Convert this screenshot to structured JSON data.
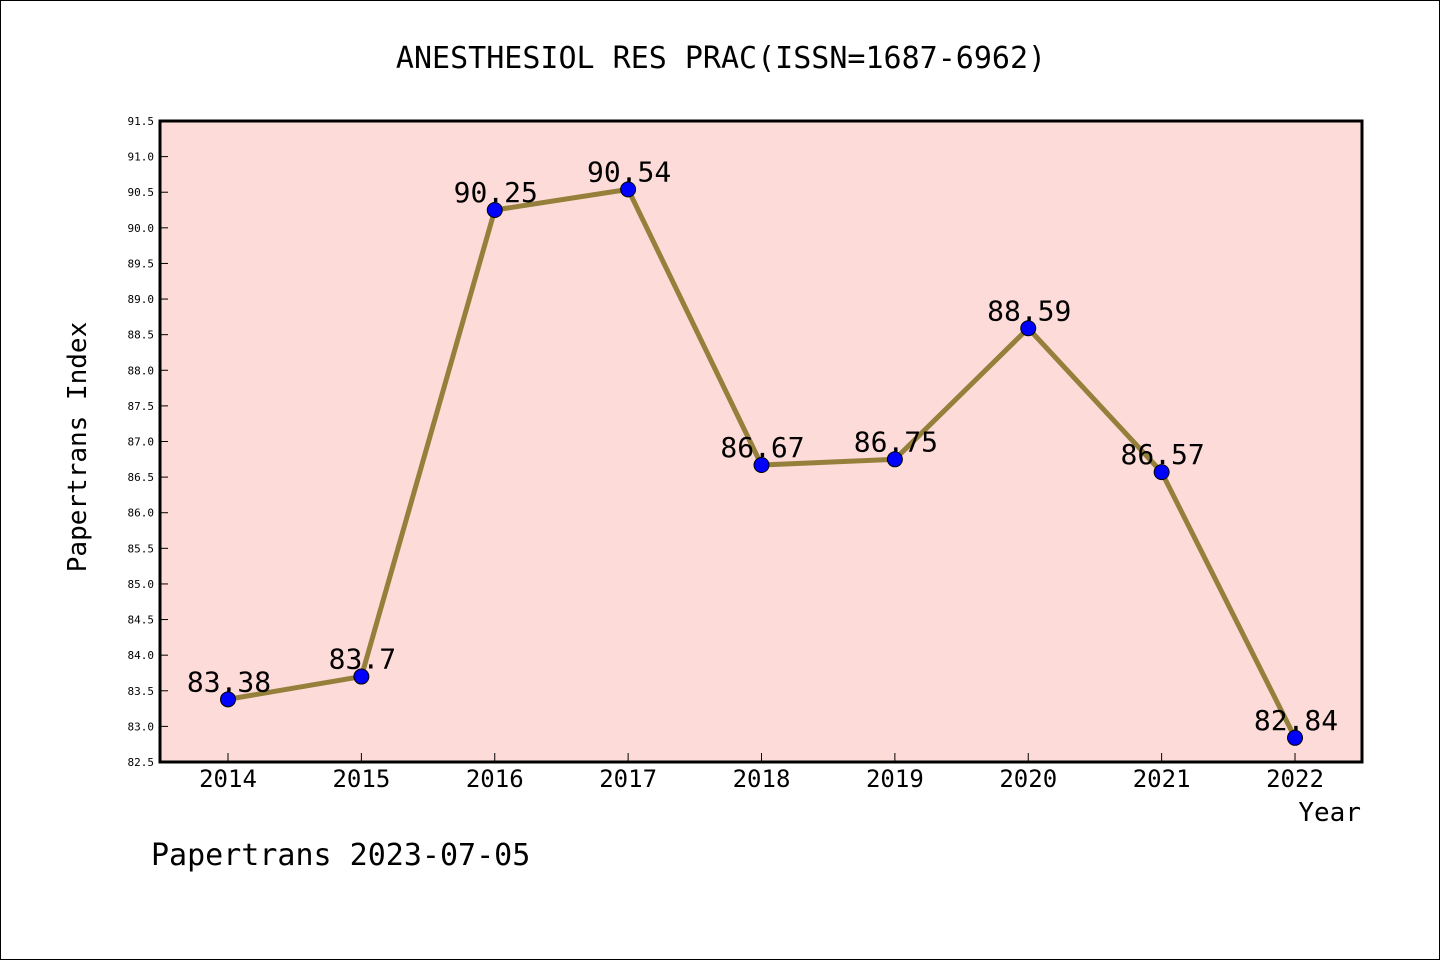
{
  "chart_data": {
    "type": "line",
    "title": "ANESTHESIOL RES PRAC(ISSN=1687-6962)",
    "xlabel": "Year",
    "ylabel": "Papertrans Index",
    "categories": [
      "2014",
      "2015",
      "2016",
      "2017",
      "2018",
      "2019",
      "2020",
      "2021",
      "2022"
    ],
    "series": [
      {
        "values": [
          83.38,
          83.7,
          90.25,
          90.54,
          86.67,
          86.75,
          88.59,
          86.57,
          82.84
        ],
        "labels": [
          "83.38",
          "83.7",
          "90.25",
          "90.54",
          "86.67",
          "86.75",
          "88.59",
          "86.57",
          "82.84"
        ]
      }
    ],
    "ylim": [
      82.5,
      91.5
    ],
    "yticks": [
      "82.5",
      "83.0",
      "83.5",
      "84.0",
      "84.5",
      "85.0",
      "85.5",
      "86.0",
      "86.5",
      "87.0",
      "87.5",
      "88.0",
      "88.5",
      "89.0",
      "89.5",
      "90.0",
      "90.5",
      "91.0",
      "91.5"
    ],
    "grid": false,
    "legend": "none",
    "colors": {
      "plot_background": "#fddbd8",
      "line": "#94803a",
      "marker": "#0000ff",
      "axis": "#000000"
    }
  },
  "footer": "Papertrans 2023-07-05"
}
